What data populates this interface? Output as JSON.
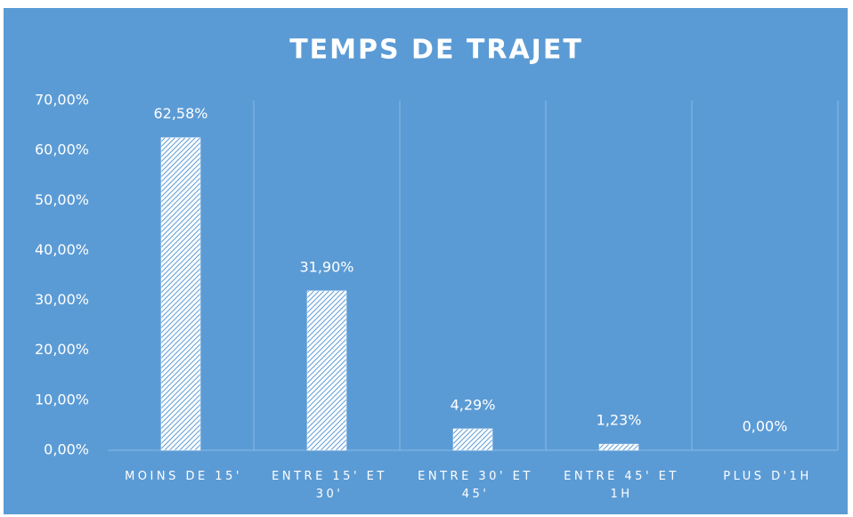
{
  "chart_data": {
    "type": "bar",
    "title": "TEMPS DE TRAJET",
    "categories": [
      "MOINS DE 15'",
      "ENTRE 15' ET 30'",
      "ENTRE 30' ET 45'",
      "ENTRE 45' ET 1H",
      "PLUS D'1H"
    ],
    "values": [
      62.58,
      31.9,
      4.29,
      1.23,
      0
    ],
    "value_labels": [
      "62,58%",
      "31,90%",
      "4,29%",
      "1,23%",
      "0,00%"
    ],
    "color": "#ffffff",
    "ylim": [
      0,
      70
    ],
    "yticks": [
      {
        "value": 0,
        "label": "0,00%"
      },
      {
        "value": 10,
        "label": "10,00%"
      },
      {
        "value": 20,
        "label": "20,00%"
      },
      {
        "value": 30,
        "label": "30,00%"
      },
      {
        "value": 40,
        "label": "40,00%"
      },
      {
        "value": 50,
        "label": "50,00%"
      },
      {
        "value": 60,
        "label": "60,00%"
      },
      {
        "value": 70,
        "label": "70,00%"
      }
    ]
  }
}
